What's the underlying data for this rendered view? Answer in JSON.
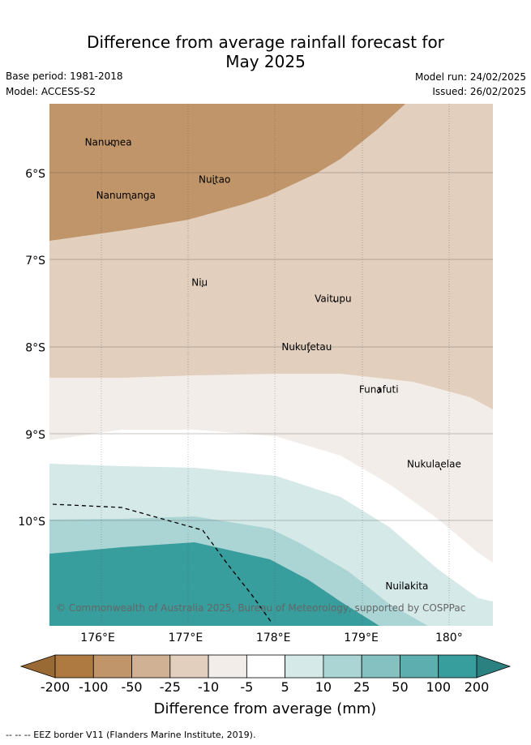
{
  "title": {
    "line1": "Difference from average rainfall forecast for",
    "line2": "May 2025"
  },
  "meta": {
    "base_period": "Base period: 1981-2018",
    "model": "Model: ACCESS-S2",
    "model_run": "Model run: 24/02/2025",
    "issued": "Issued: 26/02/2025"
  },
  "map": {
    "lon_range": [
      175.45,
      180.5
    ],
    "lat_range": [
      -11.2,
      -5.2
    ],
    "lon_ticks": [
      {
        "value": 176,
        "label": "176°E"
      },
      {
        "value": 177,
        "label": "177°E"
      },
      {
        "value": 178,
        "label": "178°E"
      },
      {
        "value": 179,
        "label": "179°E"
      },
      {
        "value": 180,
        "label": "180°"
      }
    ],
    "lat_ticks": [
      {
        "value": -6,
        "label": "6°S"
      },
      {
        "value": -7,
        "label": "7°S"
      },
      {
        "value": -8,
        "label": "8°S"
      },
      {
        "value": -9,
        "label": "9°S"
      },
      {
        "value": -10,
        "label": "10°S"
      }
    ],
    "places": [
      {
        "name": "Nanumea",
        "lon": 176.12,
        "lat": -5.68
      },
      {
        "name": "Nuitao",
        "lon": 177.33,
        "lat": -6.11
      },
      {
        "name": "Nanumanga",
        "lon": 176.32,
        "lat": -6.29
      },
      {
        "name": "Niu",
        "lon": 177.16,
        "lat": -7.29
      },
      {
        "name": "Vaitupu",
        "lon": 178.68,
        "lat": -7.48
      },
      {
        "name": "Nukufetau",
        "lon": 178.38,
        "lat": -8.03
      },
      {
        "name": "Funafuti",
        "lon": 179.2,
        "lat": -8.52
      },
      {
        "name": "Nukulaelae",
        "lon": 179.83,
        "lat": -9.38
      },
      {
        "name": "Nuilakita",
        "lon": 179.52,
        "lat": -10.78
      }
    ],
    "copyright": "© Commonwealth of Australia 2025, Bureau of Meteorology, supported by COSPPac"
  },
  "colorbar": {
    "title": "Difference from average (mm)",
    "ticks": [
      "-200",
      "-100",
      "-50",
      "-25",
      "-10",
      "-5",
      "5",
      "10",
      "25",
      "50",
      "100",
      "200"
    ],
    "colors": [
      "#ae7a41",
      "#c09569",
      "#d1b193",
      "#e3cfbe",
      "#f2ede8",
      "#ffffff",
      "#d4e9e8",
      "#abd5d5",
      "#86c1c1",
      "#5daeae",
      "#379d9d"
    ],
    "under_color": "#9a6a35",
    "over_color": "#2b8080"
  },
  "footer": "--  --  -- EEZ border V11 (Flanders Marine Institute, 2019)."
}
